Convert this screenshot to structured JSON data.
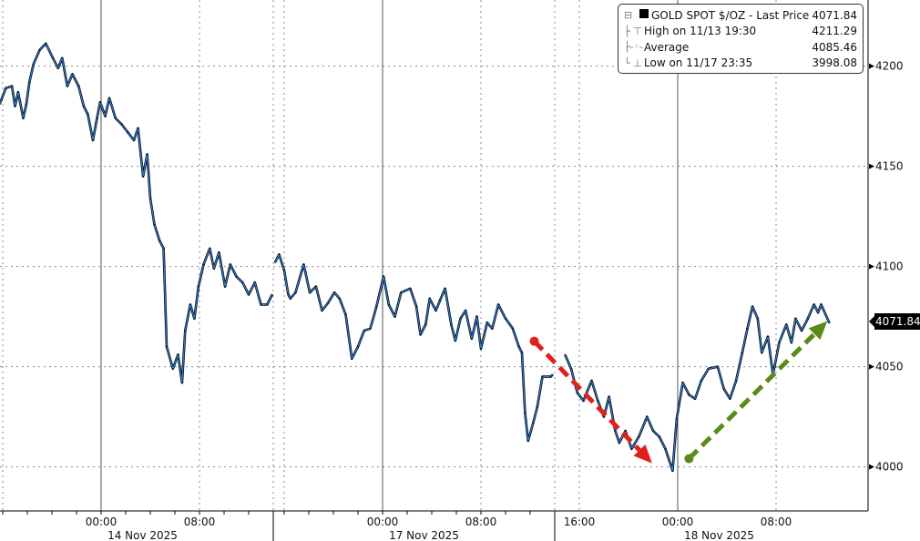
{
  "legend": {
    "series": {
      "label": "GOLD SPOT $/OZ - Last Price",
      "value": "4071.84",
      "icon": "black-square"
    },
    "high": {
      "label": "High on 11/13 19:30",
      "value": "4211.29",
      "icon": "high-marker"
    },
    "average": {
      "label": "Average",
      "value": "4085.46",
      "icon": "average-marker"
    },
    "low": {
      "label": "Low on 11/17 23:35",
      "value": "3998.08",
      "icon": "low-marker"
    }
  },
  "last_price_tag": "4071.84",
  "colors": {
    "line": "#2f7fd8",
    "candle": "#000000",
    "down_arrow": "#e0201b",
    "up_arrow": "#5a8a1a",
    "grid": "#888888"
  },
  "chart_data": {
    "type": "line",
    "title": "",
    "xlabel": "",
    "ylabel": "",
    "ylim": [
      3978,
      4233
    ],
    "yticks": [
      4000,
      4050,
      4100,
      4150,
      4200
    ],
    "grid": true,
    "legend_placement": "top-right",
    "y_axis_side": "right",
    "x_ticks": [
      {
        "time": "11/14 00:00",
        "label": "00:00"
      },
      {
        "time": "11/14 08:00",
        "label": "08:00"
      },
      {
        "time": "11/17 00:00",
        "label": "00:00"
      },
      {
        "time": "11/17 08:00",
        "label": "08:00"
      },
      {
        "time": "11/17 16:00",
        "label": "16:00"
      },
      {
        "time": "11/18 00:00",
        "label": "00:00"
      },
      {
        "time": "11/18 08:00",
        "label": "08:00"
      }
    ],
    "date_labels": [
      {
        "time": "11/14 03:00",
        "label": "14 Nov 2025"
      },
      {
        "time": "11/17 03:00",
        "label": "17 Nov 2025"
      },
      {
        "time": "11/18 03:00",
        "label": "18 Nov 2025"
      }
    ],
    "series": [
      {
        "name": "GOLD SPOT $/OZ - Last Price",
        "points": [
          [
            "11/13 15:45",
            4181
          ],
          [
            "11/13 16:15",
            4189
          ],
          [
            "11/13 16:45",
            4190
          ],
          [
            "11/13 17:00",
            4180
          ],
          [
            "11/13 17:15",
            4187
          ],
          [
            "11/13 17:40",
            4174
          ],
          [
            "11/13 17:55",
            4181
          ],
          [
            "11/13 18:10",
            4192
          ],
          [
            "11/13 18:30",
            4201
          ],
          [
            "11/13 19:00",
            4208
          ],
          [
            "11/13 19:30",
            4211.29
          ],
          [
            "11/13 20:05",
            4204
          ],
          [
            "11/13 20:30",
            4199
          ],
          [
            "11/13 20:50",
            4204
          ],
          [
            "11/13 21:15",
            4190
          ],
          [
            "11/13 21:40",
            4196
          ],
          [
            "11/13 22:10",
            4190
          ],
          [
            "11/13 22:35",
            4180
          ],
          [
            "11/13 22:55",
            4176
          ],
          [
            "11/13 23:20",
            4163
          ],
          [
            "11/13 23:40",
            4174
          ],
          [
            "11/13 23:55",
            4182
          ],
          [
            "11/14 00:20",
            4175
          ],
          [
            "11/14 00:40",
            4184
          ],
          [
            "11/14 01:10",
            4174
          ],
          [
            "11/14 01:40",
            4171
          ],
          [
            "11/14 02:10",
            4167
          ],
          [
            "11/14 02:40",
            4163
          ],
          [
            "11/14 03:00",
            4169
          ],
          [
            "11/14 03:25",
            4145
          ],
          [
            "11/14 03:45",
            4156
          ],
          [
            "11/14 04:00",
            4134
          ],
          [
            "11/14 04:20",
            4121
          ],
          [
            "11/14 04:45",
            4113
          ],
          [
            "11/14 05:05",
            4109
          ],
          [
            "11/14 05:20",
            4060
          ],
          [
            "11/14 05:50",
            4049
          ],
          [
            "11/14 06:15",
            4056
          ],
          [
            "11/14 06:35",
            4042
          ],
          [
            "11/14 06:50",
            4068
          ],
          [
            "11/14 07:15",
            4081
          ],
          [
            "11/14 07:35",
            4074
          ],
          [
            "11/14 07:55",
            4090
          ],
          [
            "11/14 08:20",
            4101
          ],
          [
            "11/14 08:50",
            4109
          ],
          [
            "11/14 09:10",
            4099
          ],
          [
            "11/14 09:35",
            4107
          ],
          [
            "11/14 10:05",
            4090
          ],
          [
            "11/14 10:30",
            4101
          ],
          [
            "11/14 11:00",
            4095
          ],
          [
            "11/14 11:30",
            4092
          ],
          [
            "11/14 12:00",
            4086
          ],
          [
            "11/14 12:30",
            4092
          ],
          [
            "11/14 13:00",
            4081
          ],
          [
            "11/14 13:30",
            4081
          ],
          [
            "11/14 13:55",
            4086
          ],
          [
            "11/16 15:15",
            4102
          ],
          [
            "11/16 15:35",
            4106
          ],
          [
            "11/16 16:00",
            4098
          ],
          [
            "11/16 16:20",
            4086
          ],
          [
            "11/16 16:30",
            4084
          ],
          [
            "11/16 16:55",
            4087
          ],
          [
            "11/16 17:35",
            4101
          ],
          [
            "11/16 18:05",
            4087
          ],
          [
            "11/16 18:35",
            4090
          ],
          [
            "11/16 19:05",
            4078
          ],
          [
            "11/16 19:35",
            4082
          ],
          [
            "11/16 20:05",
            4087
          ],
          [
            "11/16 20:30",
            4084
          ],
          [
            "11/16 21:00",
            4076
          ],
          [
            "11/16 21:30",
            4054
          ],
          [
            "11/16 22:00",
            4060
          ],
          [
            "11/16 22:30",
            4068
          ],
          [
            "11/16 23:00",
            4069
          ],
          [
            "11/16 23:30",
            4080
          ],
          [
            "11/17 00:05",
            4095
          ],
          [
            "11/17 00:30",
            4081
          ],
          [
            "11/17 01:00",
            4075
          ],
          [
            "11/17 01:30",
            4087
          ],
          [
            "11/17 02:15",
            4089
          ],
          [
            "11/17 02:45",
            4080
          ],
          [
            "11/17 03:05",
            4066
          ],
          [
            "11/17 03:30",
            4071
          ],
          [
            "11/17 03:50",
            4084
          ],
          [
            "11/17 04:20",
            4078
          ],
          [
            "11/17 04:40",
            4083
          ],
          [
            "11/17 05:05",
            4089
          ],
          [
            "11/17 05:35",
            4071
          ],
          [
            "11/17 05:55",
            4063
          ],
          [
            "11/17 06:20",
            4074
          ],
          [
            "11/17 06:45",
            4078
          ],
          [
            "11/17 07:15",
            4064
          ],
          [
            "11/17 07:40",
            4075
          ],
          [
            "11/17 08:00",
            4059
          ],
          [
            "11/17 08:30",
            4072
          ],
          [
            "11/17 08:55",
            4069
          ],
          [
            "11/17 09:25",
            4081
          ],
          [
            "11/17 10:00",
            4074
          ],
          [
            "11/17 10:35",
            4069
          ],
          [
            "11/17 11:05",
            4060
          ],
          [
            "11/17 11:20",
            4057
          ],
          [
            "11/17 11:35",
            4027
          ],
          [
            "11/17 11:50",
            4013
          ],
          [
            "11/17 12:15",
            4022
          ],
          [
            "11/17 12:35",
            4030
          ],
          [
            "11/17 13:00",
            4045
          ],
          [
            "11/17 13:40",
            4045
          ],
          [
            "11/17 13:50",
            4046
          ],
          [
            "11/17 14:50",
            4056
          ],
          [
            "11/17 15:20",
            4049
          ],
          [
            "11/17 15:50",
            4037
          ],
          [
            "11/17 16:20",
            4033
          ],
          [
            "11/17 17:00",
            4043
          ],
          [
            "11/17 17:30",
            4033
          ],
          [
            "11/17 18:00",
            4025
          ],
          [
            "11/17 18:25",
            4035
          ],
          [
            "11/17 18:55",
            4018
          ],
          [
            "11/17 19:15",
            4012
          ],
          [
            "11/17 19:45",
            4018
          ],
          [
            "11/17 20:15",
            4009
          ],
          [
            "11/17 20:50",
            4015
          ],
          [
            "11/17 21:30",
            4025
          ],
          [
            "11/17 22:00",
            4018
          ],
          [
            "11/17 22:30",
            4015
          ],
          [
            "11/17 23:00",
            4009
          ],
          [
            "11/17 23:35",
            3998.08
          ],
          [
            "11/17 23:55",
            4024
          ],
          [
            "11/18 00:25",
            4042
          ],
          [
            "11/18 00:55",
            4036
          ],
          [
            "11/18 01:25",
            4034
          ],
          [
            "11/18 01:55",
            4043
          ],
          [
            "11/18 02:30",
            4049
          ],
          [
            "11/18 03:15",
            4050
          ],
          [
            "11/18 03:45",
            4039
          ],
          [
            "11/18 04:15",
            4034
          ],
          [
            "11/18 04:45",
            4043
          ],
          [
            "11/18 05:15",
            4057
          ],
          [
            "11/18 05:40",
            4069
          ],
          [
            "11/18 06:05",
            4080
          ],
          [
            "11/18 06:30",
            4074
          ],
          [
            "11/18 06:50",
            4057
          ],
          [
            "11/18 07:20",
            4065
          ],
          [
            "11/18 07:45",
            4046
          ],
          [
            "11/18 08:15",
            4062
          ],
          [
            "11/18 08:50",
            4071
          ],
          [
            "11/18 09:15",
            4062
          ],
          [
            "11/18 09:35",
            4074
          ],
          [
            "11/18 10:05",
            4068
          ],
          [
            "11/18 10:35",
            4074
          ],
          [
            "11/18 11:05",
            4081
          ],
          [
            "11/18 11:25",
            4077
          ],
          [
            "11/18 11:40",
            4081
          ],
          [
            "11/18 12:20",
            4071.84
          ]
        ]
      }
    ],
    "annotations": [
      {
        "type": "dashed-arrow",
        "color": "#e0201b",
        "from": [
          "11/17 12:20",
          4062.7
        ],
        "to": [
          "11/17 21:55",
          4001.8
        ]
      },
      {
        "type": "dashed-arrow",
        "color": "#5a8a1a",
        "from": [
          "11/18 00:55",
          4004.1
        ],
        "to": [
          "11/18 12:10",
          4072.7
        ]
      }
    ]
  }
}
